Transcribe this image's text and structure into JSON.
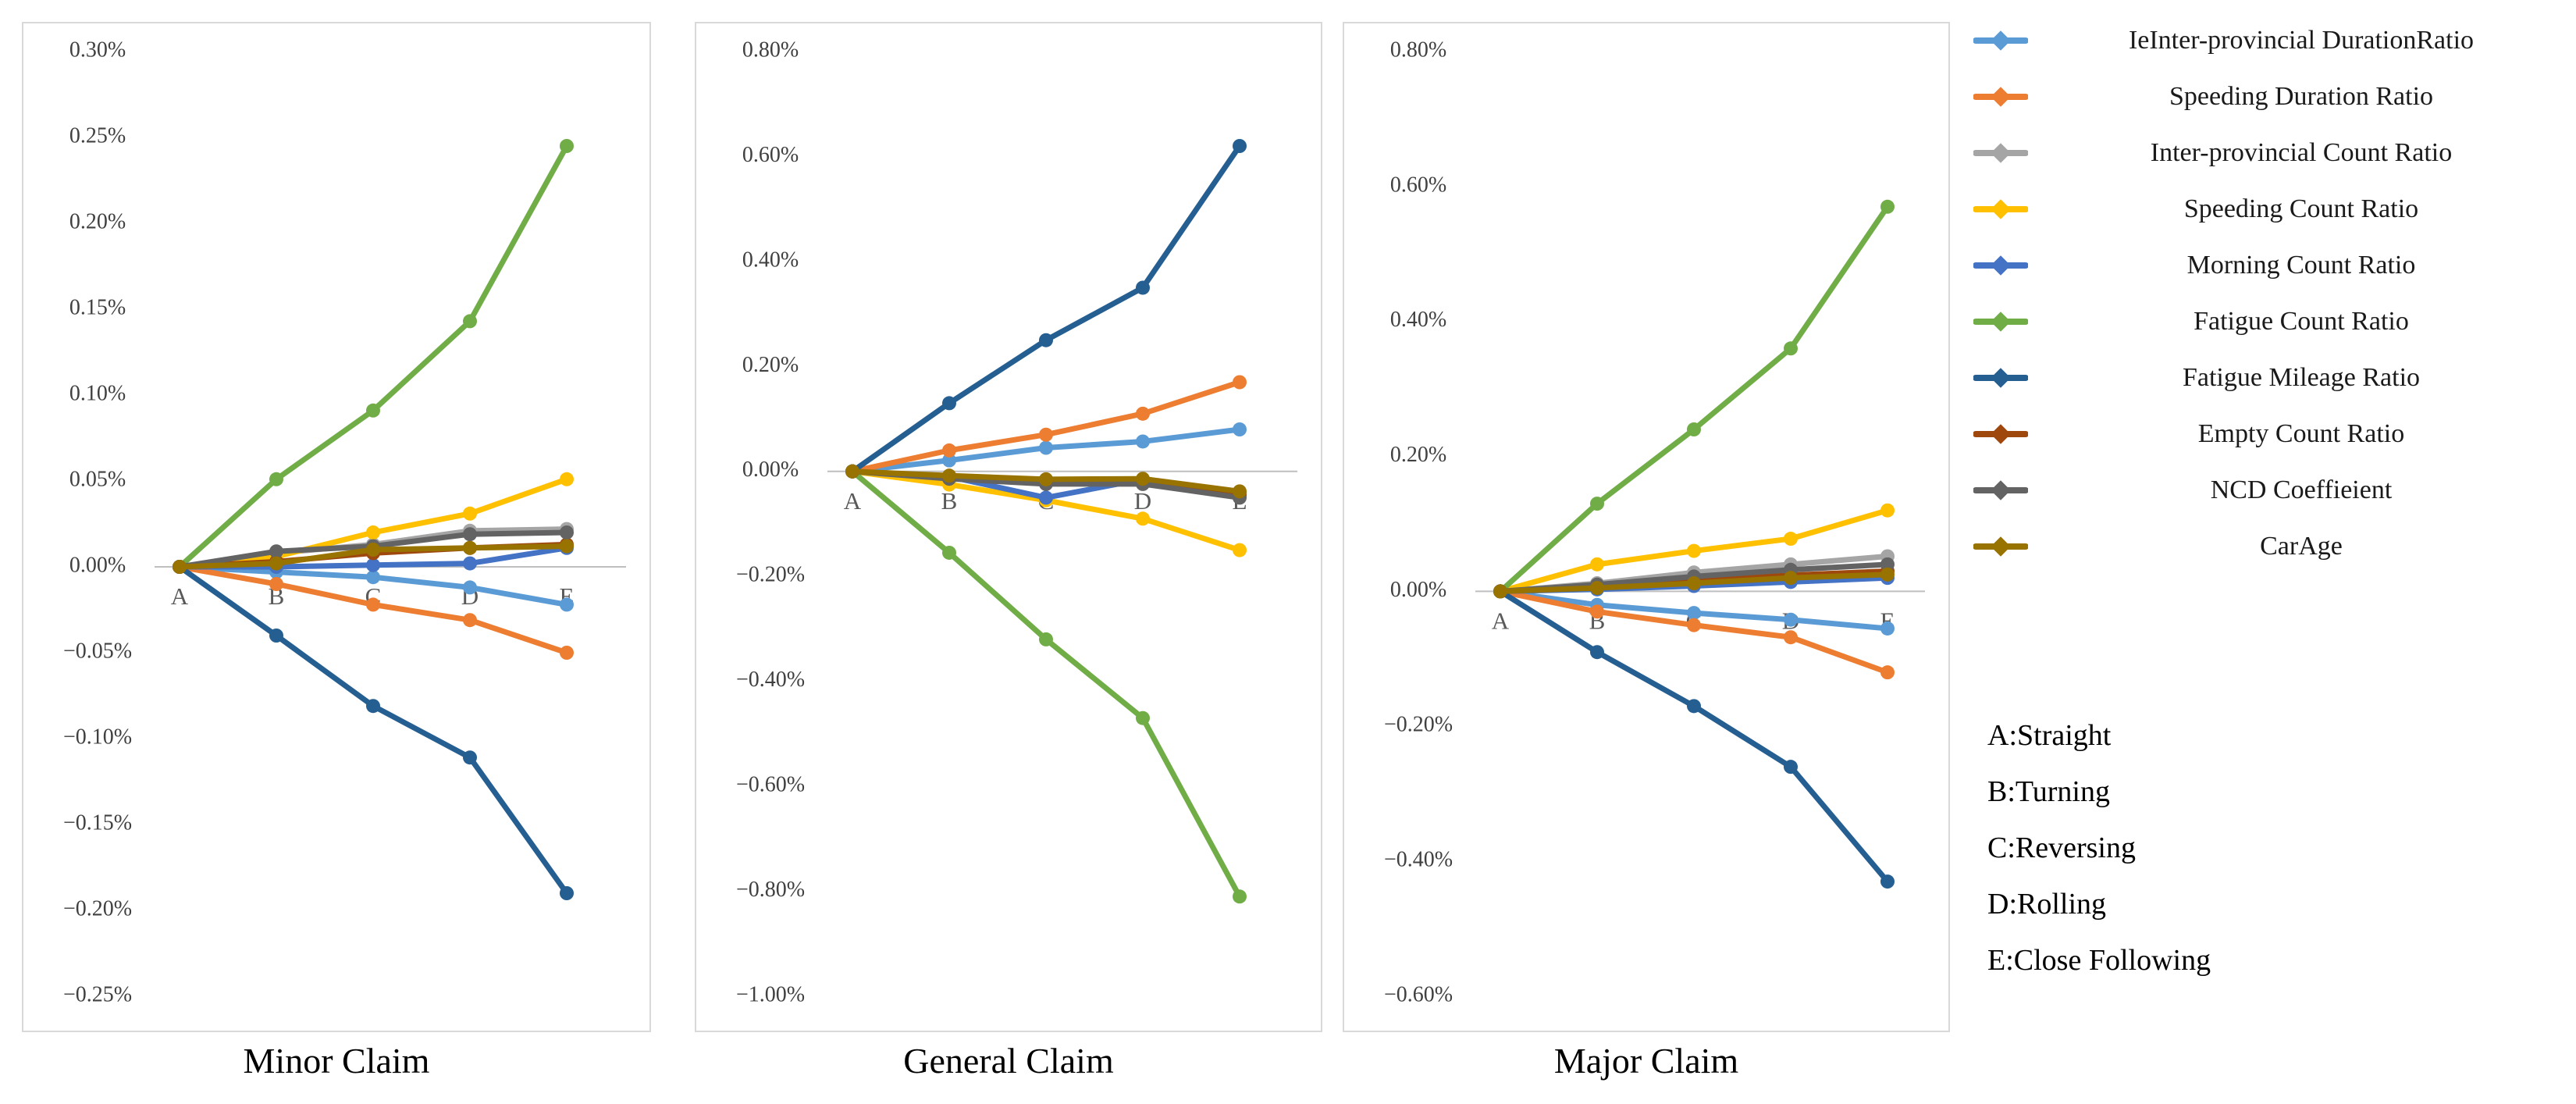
{
  "figure": {
    "description_titles": [
      "Minor Claim",
      "General Claim",
      "Major Claim"
    ]
  },
  "legend": {
    "position": "right",
    "items": [
      {
        "label": "IeInter-provincial DurationRatio",
        "color": "#5B9BD5"
      },
      {
        "label": "Speeding Duration Ratio",
        "color": "#ED7D31"
      },
      {
        "label": "Inter-provincial Count Ratio",
        "color": "#A5A5A5"
      },
      {
        "label": "Speeding Count Ratio",
        "color": "#FFC000"
      },
      {
        "label": "Morning Count Ratio",
        "color": "#4472C4"
      },
      {
        "label": "Fatigue Count Ratio",
        "color": "#70AD47"
      },
      {
        "label": "Fatigue Mileage Ratio",
        "color": "#255E91"
      },
      {
        "label": "Empty Count Ratio",
        "color": "#9E480E"
      },
      {
        "label": "NCD Coeffieient",
        "color": "#636363"
      },
      {
        "label": "CarAge",
        "color": "#997300"
      }
    ],
    "key_lines": [
      "A:Straight",
      "B:Turning",
      "C:Reversing",
      "D:Rolling",
      "E:Close Following"
    ]
  },
  "chart_data": [
    {
      "type": "line",
      "title": "Minor Claim",
      "categories": [
        "A",
        "B",
        "C",
        "D",
        "E"
      ],
      "ylim": [
        -0.25,
        0.3
      ],
      "ytick_step": 0.05,
      "ytick_labels": [
        "0.30%",
        "0.25%",
        "0.20%",
        "0.15%",
        "0.10%",
        "0.05%",
        "0.00%",
        "−0.05%",
        "−0.10%",
        "−0.15%",
        "−0.20%",
        "−0.25%"
      ],
      "value_unit": "percent",
      "grid": "zero-line-only",
      "series": [
        {
          "name": "IeInter-provincial DurationRatio",
          "color": "#5B9BD5",
          "values": [
            0,
            -0.003,
            -0.006,
            -0.012,
            -0.022
          ]
        },
        {
          "name": "Speeding Duration Ratio",
          "color": "#ED7D31",
          "values": [
            0,
            -0.01,
            -0.022,
            -0.031,
            -0.05
          ]
        },
        {
          "name": "Inter-provincial Count Ratio",
          "color": "#A5A5A5",
          "values": [
            0,
            0.008,
            0.013,
            0.021,
            0.022
          ]
        },
        {
          "name": "Speeding Count Ratio",
          "color": "#FFC000",
          "values": [
            0,
            0.006,
            0.02,
            0.031,
            0.051
          ]
        },
        {
          "name": "Morning Count Ratio",
          "color": "#4472C4",
          "values": [
            0,
            0.0,
            0.001,
            0.002,
            0.011
          ]
        },
        {
          "name": "Fatigue Count Ratio",
          "color": "#70AD47",
          "values": [
            0,
            0.051,
            0.091,
            0.143,
            0.245
          ]
        },
        {
          "name": "Fatigue Mileage Ratio",
          "color": "#255E91",
          "values": [
            0,
            -0.04,
            -0.081,
            -0.111,
            -0.19
          ]
        },
        {
          "name": "Empty Count Ratio",
          "color": "#9E480E",
          "values": [
            0,
            0.003,
            0.008,
            0.011,
            0.013
          ]
        },
        {
          "name": "NCD Coeffieient",
          "color": "#636363",
          "values": [
            0,
            0.009,
            0.012,
            0.019,
            0.02
          ]
        },
        {
          "name": "CarAge",
          "color": "#997300",
          "values": [
            0,
            0.002,
            0.01,
            0.011,
            0.012
          ]
        }
      ]
    },
    {
      "type": "line",
      "title": "General Claim",
      "categories": [
        "A",
        "B",
        "C",
        "D",
        "E"
      ],
      "ylim": [
        -1.0,
        0.8
      ],
      "ytick_step": 0.2,
      "ytick_labels": [
        "0.80%",
        "0.60%",
        "0.40%",
        "0.20%",
        "0.00%",
        "−0.20%",
        "−0.40%",
        "−0.60%",
        "−0.80%",
        "−1.00%"
      ],
      "value_unit": "percent",
      "grid": "zero-line-only",
      "series": [
        {
          "name": "IeInter-provincial DurationRatio",
          "color": "#5B9BD5",
          "values": [
            0,
            0.021,
            0.045,
            0.057,
            0.08
          ]
        },
        {
          "name": "Speeding Duration Ratio",
          "color": "#ED7D31",
          "values": [
            0,
            0.04,
            0.07,
            0.11,
            0.17
          ]
        },
        {
          "name": "Inter-provincial Count Ratio",
          "color": "#A5A5A5",
          "values": [
            0,
            -0.01,
            -0.02,
            -0.022,
            -0.048
          ]
        },
        {
          "name": "Speeding Count Ratio",
          "color": "#FFC000",
          "values": [
            0,
            -0.025,
            -0.055,
            -0.09,
            -0.15
          ]
        },
        {
          "name": "Morning Count Ratio",
          "color": "#4472C4",
          "values": [
            0,
            -0.01,
            -0.05,
            -0.015,
            -0.04
          ]
        },
        {
          "name": "Fatigue Count Ratio",
          "color": "#70AD47",
          "values": [
            0,
            -0.155,
            -0.32,
            -0.47,
            -0.81
          ]
        },
        {
          "name": "Fatigue Mileage Ratio",
          "color": "#255E91",
          "values": [
            0,
            0.13,
            0.25,
            0.35,
            0.62
          ]
        },
        {
          "name": "Empty Count Ratio",
          "color": "#9E480E",
          "values": [
            0,
            -0.012,
            -0.02,
            -0.021,
            -0.045
          ]
        },
        {
          "name": "NCD Coeffieient",
          "color": "#636363",
          "values": [
            0,
            -0.014,
            -0.024,
            -0.024,
            -0.05
          ]
        },
        {
          "name": "CarAge",
          "color": "#997300",
          "values": [
            0,
            -0.008,
            -0.015,
            -0.014,
            -0.038
          ]
        }
      ]
    },
    {
      "type": "line",
      "title": "Major Claim",
      "categories": [
        "A",
        "B",
        "C",
        "D",
        "E"
      ],
      "ylim": [
        -0.6,
        0.8
      ],
      "ytick_step": 0.2,
      "ytick_labels": [
        "0.80%",
        "0.60%",
        "0.40%",
        "0.20%",
        "0.00%",
        "−0.20%",
        "−0.40%",
        "−0.60%"
      ],
      "value_unit": "percent",
      "grid": "zero-line-only",
      "series": [
        {
          "name": "IeInter-provincial DurationRatio",
          "color": "#5B9BD5",
          "values": [
            0,
            -0.02,
            -0.032,
            -0.042,
            -0.055
          ]
        },
        {
          "name": "Speeding Duration Ratio",
          "color": "#ED7D31",
          "values": [
            0,
            -0.03,
            -0.05,
            -0.068,
            -0.12
          ]
        },
        {
          "name": "Inter-provincial Count Ratio",
          "color": "#A5A5A5",
          "values": [
            0,
            0.012,
            0.028,
            0.04,
            0.052
          ]
        },
        {
          "name": "Speeding Count Ratio",
          "color": "#FFC000",
          "values": [
            0,
            0.04,
            0.06,
            0.078,
            0.12
          ]
        },
        {
          "name": "Morning Count Ratio",
          "color": "#4472C4",
          "values": [
            0,
            0.003,
            0.008,
            0.014,
            0.02
          ]
        },
        {
          "name": "Fatigue Count Ratio",
          "color": "#70AD47",
          "values": [
            0,
            0.13,
            0.24,
            0.36,
            0.57
          ]
        },
        {
          "name": "Fatigue Mileage Ratio",
          "color": "#255E91",
          "values": [
            0,
            -0.09,
            -0.17,
            -0.26,
            -0.43
          ]
        },
        {
          "name": "Empty Count Ratio",
          "color": "#9E480E",
          "values": [
            0,
            0.007,
            0.016,
            0.024,
            0.03
          ]
        },
        {
          "name": "NCD Coeffieient",
          "color": "#636363",
          "values": [
            0,
            0.01,
            0.022,
            0.032,
            0.04
          ]
        },
        {
          "name": "CarAge",
          "color": "#997300",
          "values": [
            0,
            0.005,
            0.012,
            0.02,
            0.025
          ]
        }
      ]
    }
  ]
}
